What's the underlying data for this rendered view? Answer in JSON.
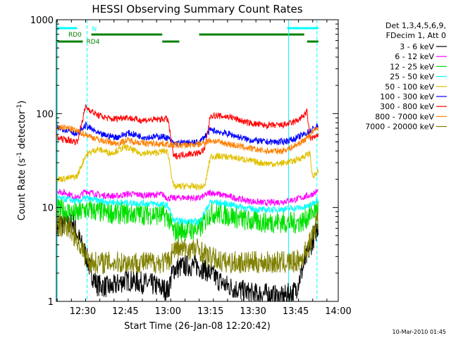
{
  "chart_data": {
    "type": "line",
    "title": "HESSI Observing Summary Count Rates",
    "xlabel": "Start Time (26-Jan-08 12:20:42)",
    "ylabel": "Count Rate (s⁻¹ detector⁻¹)",
    "ylabel_base": "Count Rate (s",
    "ylabel_mid": " detector",
    "ylabel_end": ")",
    "ylabel_sup": "-1",
    "y_scale": "log",
    "ylim": [
      1,
      1000
    ],
    "xlim": [
      "12:20:42",
      "14:00:00"
    ],
    "x_ticks": [
      {
        "label": "12:30",
        "minutes": 30
      },
      {
        "label": "12:45",
        "minutes": 45
      },
      {
        "label": "13:00",
        "minutes": 60
      },
      {
        "label": "13:15",
        "minutes": 75
      },
      {
        "label": "13:30",
        "minutes": 90
      },
      {
        "label": "13:45",
        "minutes": 105
      },
      {
        "label": "14:00",
        "minutes": 120
      }
    ],
    "y_ticks": [
      {
        "label": "1",
        "value": 1
      },
      {
        "label": "10",
        "value": 10
      },
      {
        "label": "100",
        "value": 100
      },
      {
        "label": "1000",
        "value": 1000
      }
    ],
    "legend": {
      "placement": "right",
      "header": [
        "Det 1,3,4,5,6,9,",
        "FDecim 1, Att 0"
      ]
    },
    "series": [
      {
        "name": "3 - 6 keV",
        "color": "#000000",
        "points": [
          [
            21,
            6.8
          ],
          [
            27,
            6.8
          ],
          [
            28,
            5.2
          ],
          [
            31,
            3.2
          ],
          [
            33,
            2
          ],
          [
            35,
            1.5
          ],
          [
            40,
            1.4
          ],
          [
            45,
            1.7
          ],
          [
            50,
            1.6
          ],
          [
            55,
            1.5
          ],
          [
            60,
            1.3
          ],
          [
            62,
            2.2
          ],
          [
            66,
            2.4
          ],
          [
            70,
            2.4
          ],
          [
            73,
            2.2
          ],
          [
            80,
            1.5
          ],
          [
            86,
            1.3
          ],
          [
            90,
            1.2
          ],
          [
            95,
            1.2
          ],
          [
            100,
            1.1
          ],
          [
            105,
            1.3
          ],
          [
            108,
            2.5
          ],
          [
            111,
            4.5
          ],
          [
            113,
            6.5
          ]
        ]
      },
      {
        "name": "6 - 12 keV",
        "color": "#ff00ff",
        "points": [
          [
            21,
            15
          ],
          [
            25,
            14
          ],
          [
            28,
            12.5
          ],
          [
            31,
            15
          ],
          [
            36,
            13.5
          ],
          [
            42,
            13.2
          ],
          [
            46,
            14
          ],
          [
            52,
            13.5
          ],
          [
            58,
            13.8
          ],
          [
            60,
            12.5
          ],
          [
            66,
            12.8
          ],
          [
            71,
            12.5
          ],
          [
            75,
            14.5
          ],
          [
            82,
            13
          ],
          [
            88,
            11.8
          ],
          [
            94,
            11.2
          ],
          [
            100,
            11.5
          ],
          [
            105,
            12.2
          ],
          [
            110,
            13.5
          ],
          [
            113,
            15
          ]
        ]
      },
      {
        "name": "12 - 25 keV",
        "color": "#00e000",
        "points": [
          [
            21,
            9.5
          ],
          [
            25,
            9
          ],
          [
            28,
            8.5
          ],
          [
            31,
            9.5
          ],
          [
            38,
            8.8
          ],
          [
            46,
            8.6
          ],
          [
            55,
            8.5
          ],
          [
            60,
            8
          ],
          [
            62,
            5.5
          ],
          [
            66,
            5.8
          ],
          [
            71,
            5.8
          ],
          [
            75,
            8.8
          ],
          [
            82,
            8.2
          ],
          [
            88,
            7.2
          ],
          [
            94,
            7
          ],
          [
            100,
            7
          ],
          [
            104,
            6.8
          ],
          [
            108,
            7.2
          ],
          [
            110,
            8.5
          ],
          [
            113,
            10
          ]
        ]
      },
      {
        "name": "25 - 50 keV",
        "color": "#00ffff",
        "points": [
          [
            21,
            12.5
          ],
          [
            25,
            12.2
          ],
          [
            28,
            11.5
          ],
          [
            31,
            12.5
          ],
          [
            38,
            11.5
          ],
          [
            46,
            11.2
          ],
          [
            55,
            11
          ],
          [
            60,
            10.5
          ],
          [
            62,
            7.2
          ],
          [
            66,
            7.2
          ],
          [
            71,
            7
          ],
          [
            75,
            11.5
          ],
          [
            82,
            10.8
          ],
          [
            88,
            9.8
          ],
          [
            94,
            9.4
          ],
          [
            100,
            9.6
          ],
          [
            104,
            9.8
          ],
          [
            108,
            10
          ],
          [
            110,
            10.5
          ],
          [
            113,
            12.5
          ]
        ]
      },
      {
        "name": "50 - 100 keV",
        "color": "#e0c000",
        "points": [
          [
            21,
            20
          ],
          [
            25,
            20.5
          ],
          [
            28,
            21.5
          ],
          [
            31,
            36
          ],
          [
            35,
            42
          ],
          [
            40,
            38
          ],
          [
            45,
            44
          ],
          [
            50,
            38
          ],
          [
            55,
            38
          ],
          [
            59,
            40
          ],
          [
            60,
            38.5
          ],
          [
            62,
            16.5
          ],
          [
            66,
            17
          ],
          [
            71,
            16.5
          ],
          [
            73,
            17
          ],
          [
            75,
            35
          ],
          [
            80,
            35
          ],
          [
            86,
            33
          ],
          [
            92,
            30
          ],
          [
            98,
            29
          ],
          [
            104,
            31
          ],
          [
            108,
            35
          ],
          [
            110,
            38
          ],
          [
            111,
            21
          ],
          [
            113,
            24
          ]
        ]
      },
      {
        "name": "100 - 300 keV",
        "color": "#0000ff",
        "points": [
          [
            21,
            70
          ],
          [
            25,
            67
          ],
          [
            28,
            60
          ],
          [
            31,
            75
          ],
          [
            36,
            60
          ],
          [
            42,
            56
          ],
          [
            46,
            62
          ],
          [
            52,
            56
          ],
          [
            58,
            57
          ],
          [
            60,
            55
          ],
          [
            62,
            48
          ],
          [
            66,
            49
          ],
          [
            71,
            49
          ],
          [
            75,
            67
          ],
          [
            82,
            60
          ],
          [
            88,
            53
          ],
          [
            94,
            50
          ],
          [
            100,
            50
          ],
          [
            104,
            53
          ],
          [
            108,
            60
          ],
          [
            110,
            65
          ],
          [
            113,
            75
          ]
        ]
      },
      {
        "name": "300 - 800 keV",
        "color": "#ff0000",
        "points": [
          [
            21,
            55
          ],
          [
            25,
            52
          ],
          [
            28,
            50
          ],
          [
            31,
            118
          ],
          [
            35,
            97
          ],
          [
            40,
            87
          ],
          [
            45,
            92
          ],
          [
            50,
            85
          ],
          [
            55,
            86
          ],
          [
            59,
            88
          ],
          [
            60,
            87
          ],
          [
            62,
            35
          ],
          [
            66,
            37
          ],
          [
            71,
            38
          ],
          [
            73,
            42
          ],
          [
            75,
            96
          ],
          [
            82,
            92
          ],
          [
            88,
            80
          ],
          [
            94,
            75
          ],
          [
            100,
            75
          ],
          [
            104,
            80
          ],
          [
            107,
            90
          ],
          [
            109,
            105
          ],
          [
            110,
            55
          ],
          [
            113,
            57
          ]
        ]
      },
      {
        "name": "800 - 7000 keV",
        "color": "#ff8000",
        "points": [
          [
            21,
            72
          ],
          [
            25,
            70
          ],
          [
            28,
            65
          ],
          [
            31,
            60
          ],
          [
            36,
            52
          ],
          [
            42,
            48
          ],
          [
            46,
            52
          ],
          [
            52,
            48
          ],
          [
            58,
            48
          ],
          [
            60,
            47
          ],
          [
            62,
            46
          ],
          [
            66,
            46
          ],
          [
            71,
            47
          ],
          [
            75,
            52
          ],
          [
            82,
            47
          ],
          [
            88,
            43
          ],
          [
            94,
            40
          ],
          [
            100,
            40
          ],
          [
            104,
            44
          ],
          [
            108,
            52
          ],
          [
            110,
            60
          ],
          [
            113,
            72
          ]
        ]
      },
      {
        "name": "7000 - 20000 keV",
        "color": "#808000",
        "points": [
          [
            21,
            6.5
          ],
          [
            25,
            6.2
          ],
          [
            28,
            4.6
          ],
          [
            31,
            3
          ],
          [
            33,
            2.6
          ],
          [
            36,
            2.6
          ],
          [
            45,
            2.6
          ],
          [
            55,
            2.6
          ],
          [
            60,
            2.6
          ],
          [
            62,
            3.6
          ],
          [
            66,
            3.6
          ],
          [
            71,
            3.6
          ],
          [
            74,
            3
          ],
          [
            80,
            2.6
          ],
          [
            90,
            2.6
          ],
          [
            100,
            2.6
          ],
          [
            104,
            2.6
          ],
          [
            107,
            2.8
          ],
          [
            110,
            4.2
          ],
          [
            112,
            6.2
          ],
          [
            113,
            7.8
          ]
        ]
      }
    ],
    "annotations": {
      "top_flags": [
        {
          "label": "N",
          "color": "#00ffff",
          "segments": [
            [
              21,
              28
            ],
            [
              102,
              113
            ]
          ]
        },
        {
          "label": "RD0",
          "color": "#008000",
          "segments": [
            [
              33,
              58
            ],
            [
              71,
              108
            ]
          ]
        },
        {
          "label": "RD4",
          "color": "#008000",
          "segments": [
            [
              21,
              30
            ],
            [
              58,
              64
            ],
            [
              71,
              71
            ],
            [
              109,
              113
            ]
          ]
        }
      ],
      "vertical_lines": [
        {
          "minutes": 21,
          "style": "solid",
          "color": "#00ffff"
        },
        {
          "minutes": 31.5,
          "style": "dashed",
          "color": "#00ffff"
        },
        {
          "minutes": 102.5,
          "style": "solid",
          "color": "#00ffff"
        },
        {
          "minutes": 112.5,
          "style": "dashed",
          "color": "#00ffff"
        }
      ]
    },
    "footer_date": "10-Mar-2010 01:45"
  }
}
